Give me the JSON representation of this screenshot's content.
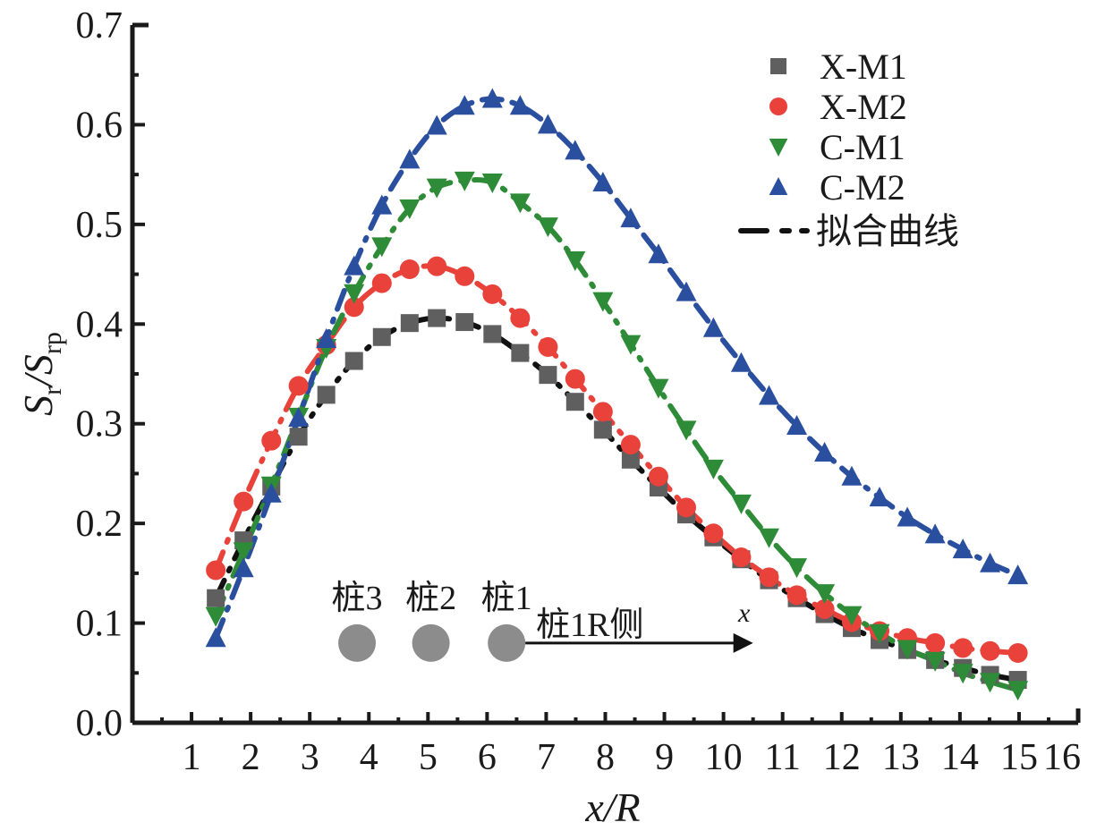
{
  "chart_data": {
    "type": "scatter",
    "title": "",
    "xlabel": "x/R",
    "ylabel": {
      "main": "S",
      "sub1": "r",
      "sep": "/S",
      "sub2": "rp"
    },
    "xlim": [
      0,
      16
    ],
    "ylim": [
      0,
      0.7
    ],
    "xticks": [
      "1",
      "2",
      "3",
      "4",
      "5",
      "6",
      "7",
      "8",
      "9",
      "10",
      "11",
      "12",
      "13",
      "14",
      "15",
      "16"
    ],
    "yticks": [
      "0.0",
      "0.1",
      "0.2",
      "0.3",
      "0.4",
      "0.5",
      "0.6",
      "0.7"
    ],
    "grid": false,
    "legend_position": "top-right",
    "x": [
      1.41,
      1.88,
      2.35,
      2.81,
      3.28,
      3.75,
      4.22,
      4.69,
      5.15,
      5.62,
      6.09,
      6.56,
      7.03,
      7.49,
      7.96,
      8.43,
      8.9,
      9.37,
      9.83,
      10.3,
      10.77,
      11.24,
      11.71,
      12.17,
      12.64,
      13.11,
      13.58,
      14.05,
      14.51,
      14.98
    ],
    "series": [
      {
        "name": "X-M1",
        "marker": "square",
        "color": "#5f5f5f",
        "fit_color": "#111111",
        "values": [
          0.125,
          0.183,
          0.237,
          0.287,
          0.329,
          0.363,
          0.387,
          0.401,
          0.406,
          0.402,
          0.39,
          0.371,
          0.349,
          0.322,
          0.294,
          0.264,
          0.236,
          0.209,
          0.186,
          0.164,
          0.143,
          0.125,
          0.109,
          0.095,
          0.083,
          0.073,
          0.063,
          0.055,
          0.048,
          0.043
        ]
      },
      {
        "name": "X-M2",
        "marker": "circle",
        "color": "#e8423b",
        "fit_color": "#e8423b",
        "values": [
          0.153,
          0.222,
          0.283,
          0.338,
          0.379,
          0.417,
          0.441,
          0.455,
          0.458,
          0.448,
          0.43,
          0.406,
          0.377,
          0.345,
          0.312,
          0.279,
          0.247,
          0.216,
          0.19,
          0.166,
          0.146,
          0.128,
          0.114,
          0.101,
          0.092,
          0.085,
          0.08,
          0.075,
          0.072,
          0.07
        ]
      },
      {
        "name": "C-M1",
        "marker": "triangle-down",
        "color": "#2e8b37",
        "fit_color": "#2e8b37",
        "values": [
          0.107,
          0.172,
          0.238,
          0.307,
          0.376,
          0.431,
          0.478,
          0.516,
          0.537,
          0.544,
          0.542,
          0.522,
          0.498,
          0.464,
          0.423,
          0.38,
          0.336,
          0.294,
          0.255,
          0.22,
          0.186,
          0.156,
          0.13,
          0.108,
          0.09,
          0.074,
          0.062,
          0.05,
          0.041,
          0.033
        ]
      },
      {
        "name": "C-M2",
        "marker": "triangle-up",
        "color": "#2a4f9e",
        "fit_color": "#2a4f9e",
        "values": [
          0.085,
          0.155,
          0.23,
          0.306,
          0.385,
          0.458,
          0.519,
          0.565,
          0.599,
          0.619,
          0.626,
          0.619,
          0.6,
          0.574,
          0.542,
          0.506,
          0.47,
          0.432,
          0.396,
          0.361,
          0.328,
          0.298,
          0.271,
          0.247,
          0.226,
          0.206,
          0.189,
          0.174,
          0.16,
          0.148
        ]
      }
    ],
    "fit_legend_label": "拟合曲线",
    "annotations": {
      "piles": [
        {
          "label": "桩3",
          "x": 3.8
        },
        {
          "label": "桩2",
          "x": 5.05
        },
        {
          "label": "桩1",
          "x": 6.33
        }
      ],
      "pile_y": 0.08,
      "arrow_label": "桩1R侧",
      "arrow_axis_label": "x",
      "arrow_end_x": 10.5
    }
  }
}
